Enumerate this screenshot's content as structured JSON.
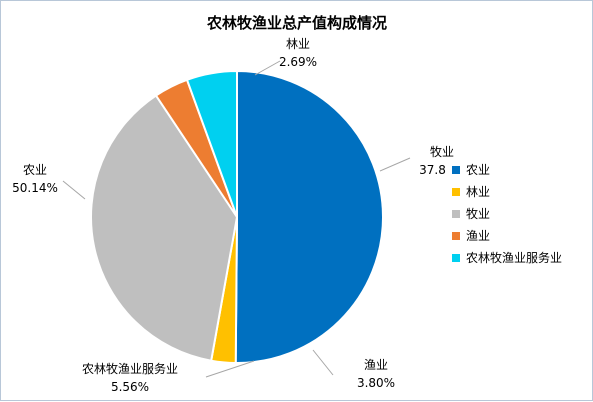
{
  "chart_data": {
    "type": "pie",
    "title": "农林牧渔业总产值构成情况",
    "start_angle_deg": 0,
    "direction": "clockwise",
    "legend_position": "right",
    "slices": [
      {
        "name": "农业",
        "value": 50.14,
        "label": "50.14%",
        "color": "#0070C0"
      },
      {
        "name": "林业",
        "value": 2.69,
        "label": "2.69%",
        "color": "#FFC000"
      },
      {
        "name": "牧业",
        "value": 37.81,
        "label": "37.81%",
        "color": "#BFBFBF"
      },
      {
        "name": "渔业",
        "value": 3.8,
        "label": "3.80%",
        "color": "#ED7D31"
      },
      {
        "name": "农林牧渔业服务业",
        "value": 5.56,
        "label": "5.56%",
        "color": "#00D0F0"
      }
    ]
  }
}
